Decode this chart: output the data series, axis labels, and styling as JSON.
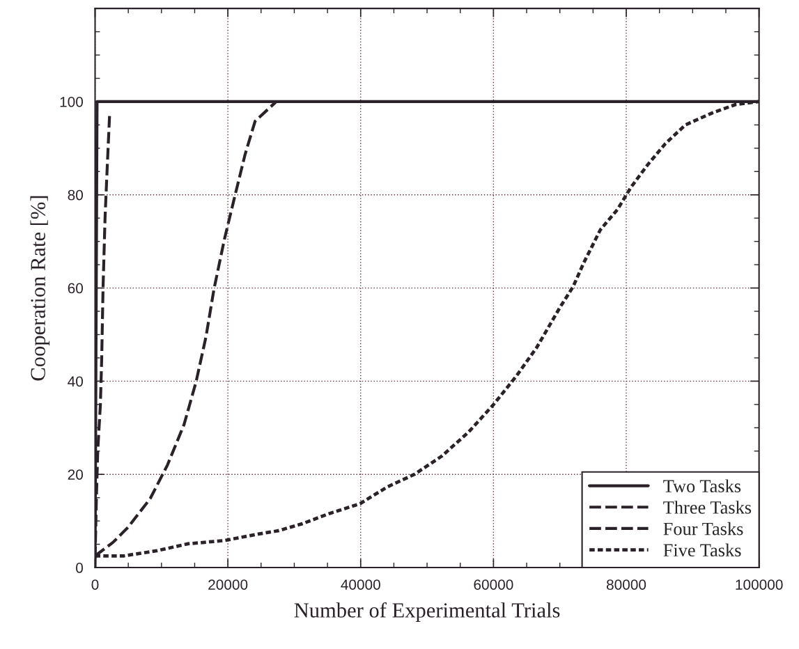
{
  "chart_data": {
    "type": "line",
    "xlabel": "Number of Experimental Trials",
    "ylabel": "Cooperation Rate [%]",
    "xlim": [
      0,
      100000
    ],
    "xticks": [
      0,
      20000,
      40000,
      60000,
      80000,
      100000
    ],
    "ylim": [
      0,
      120
    ],
    "yticks": [
      0,
      20,
      40,
      60,
      80,
      100
    ],
    "grid": true,
    "legend": "bottom right",
    "series": [
      {
        "name": "Two Tasks",
        "color": "#2a2228",
        "line_style": "solid",
        "x": [
          0,
          300,
          100000
        ],
        "values": [
          0,
          100,
          100
        ]
      },
      {
        "name": "Three Tasks",
        "color": "#2a2228",
        "line_style": "dashed",
        "x": [
          0,
          200,
          400,
          800,
          1000,
          1200,
          1500,
          1800,
          2200
        ],
        "values": [
          2,
          15,
          25,
          35,
          45,
          60,
          75,
          85,
          97.6
        ]
      },
      {
        "name": "Four Tasks",
        "color": "#2a2228",
        "line_style": "dashed",
        "x": [
          0,
          2700,
          5000,
          8300,
          10900,
          13400,
          15200,
          16700,
          17900,
          19500,
          21100,
          22600,
          24100,
          27200
        ],
        "values": [
          2.5,
          5.4,
          8.7,
          14.8,
          22,
          30.7,
          39.8,
          49.5,
          59.7,
          70.6,
          80,
          88.7,
          95.8,
          99.9
        ]
      },
      {
        "name": "Five Tasks",
        "color": "#2a2228",
        "line_style": "dotted",
        "x": [
          0,
          4300,
          9300,
          14000,
          19500,
          24600,
          27600,
          31200,
          35300,
          39900,
          44000,
          48100,
          52200,
          56200,
          59900,
          63400,
          66500,
          70000,
          72000,
          73600,
          76100,
          78700,
          80700,
          83200,
          85900,
          88900,
          93000,
          96500,
          100000
        ],
        "values": [
          2.5,
          2.5,
          3.6,
          5.1,
          5.8,
          7.2,
          7.9,
          9.4,
          11.6,
          13.7,
          17.3,
          20,
          23.9,
          29,
          34.8,
          41,
          47.2,
          55.8,
          60.3,
          65.4,
          72.5,
          76.9,
          81.6,
          86.4,
          91,
          95,
          97.6,
          99.4,
          100
        ]
      }
    ]
  }
}
